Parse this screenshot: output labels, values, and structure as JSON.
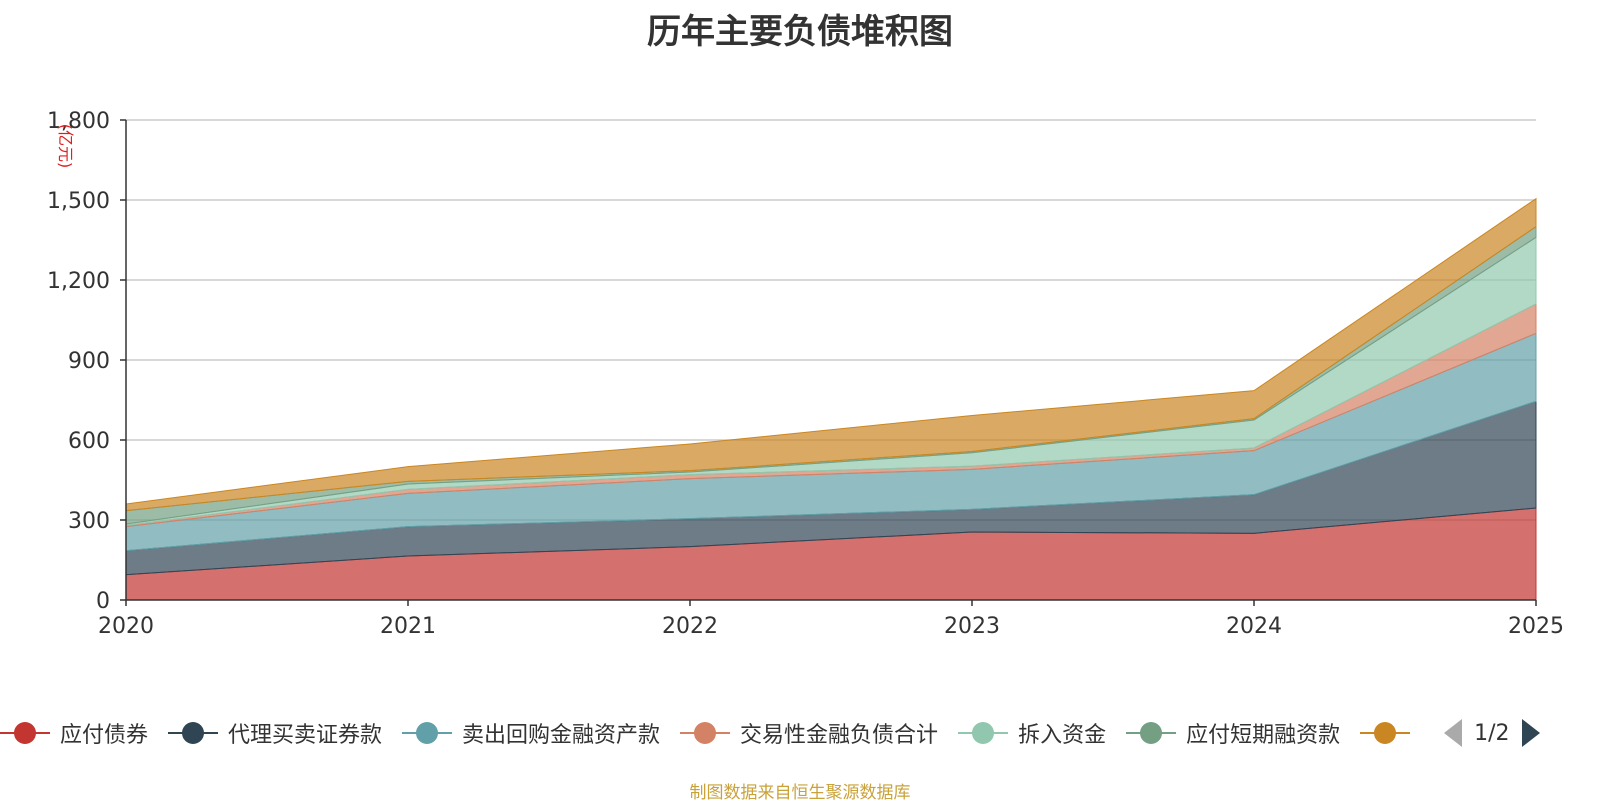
{
  "title": "历年主要负债堆积图",
  "source": "制图数据来自恒生聚源数据库",
  "chart_data": {
    "type": "area",
    "stacked": true,
    "title": "历年主要负债堆积图",
    "ylabel": "(亿元)",
    "ylim": [
      0,
      1800
    ],
    "yticks": [
      0,
      300,
      600,
      900,
      1200,
      1500,
      1800
    ],
    "ytick_labels": [
      "0",
      "300",
      "600",
      "900",
      "1,200",
      "1,500",
      "1,800"
    ],
    "categories": [
      "2020",
      "2021",
      "2022",
      "2023",
      "2024",
      "2025"
    ],
    "series": [
      {
        "name": "应付债券",
        "color": "#c23531",
        "values": [
          95,
          165,
          200,
          255,
          250,
          345
        ]
      },
      {
        "name": "代理买卖证券款",
        "color": "#2f4554",
        "values": [
          90,
          110,
          105,
          85,
          145,
          400
        ]
      },
      {
        "name": "卖出回购金融资产款",
        "color": "#61a0a8",
        "values": [
          90,
          125,
          150,
          150,
          165,
          255
        ]
      },
      {
        "name": "交易性金融负债合计",
        "color": "#d48265",
        "values": [
          5,
          15,
          15,
          12,
          10,
          110
        ]
      },
      {
        "name": "拆入资金",
        "color": "#91c7ae",
        "values": [
          5,
          20,
          10,
          50,
          105,
          250
        ]
      },
      {
        "name": "应付短期融资款",
        "color": "#749f83",
        "values": [
          50,
          10,
          5,
          5,
          5,
          40
        ]
      },
      {
        "name": "",
        "color": "#ca8622",
        "values": [
          25,
          55,
          100,
          135,
          105,
          105
        ]
      }
    ],
    "legend_position": "bottom",
    "legend_page": "1/2"
  }
}
